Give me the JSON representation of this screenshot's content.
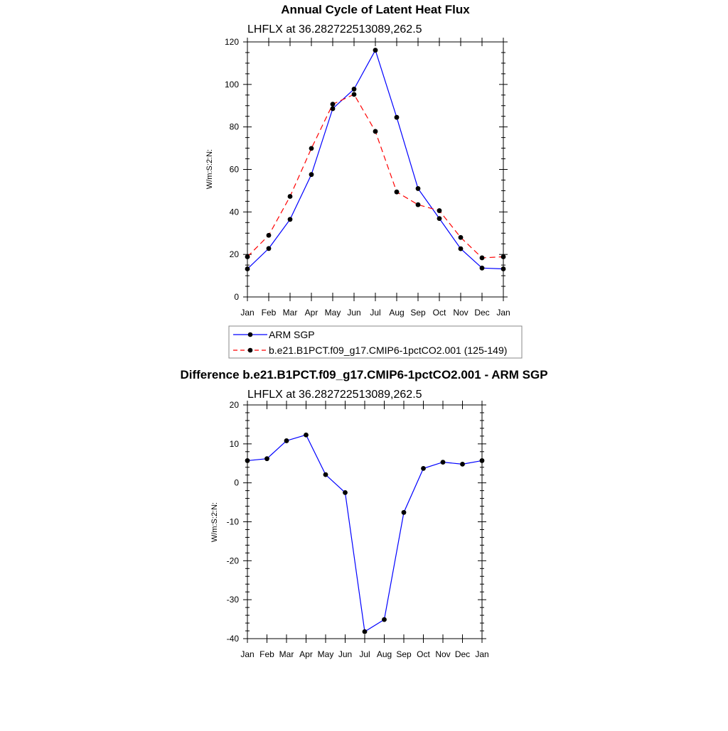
{
  "chart_data": [
    {
      "type": "line",
      "title": "Annual Cycle of Latent Heat Flux",
      "subtitle": "LHFLX at 36.282722513089,262.5",
      "ylabel": "W/m:S:2:N:",
      "xlabel": "",
      "ylim": [
        0,
        120
      ],
      "yticks": [
        "0",
        "20",
        "40",
        "60",
        "80",
        "100",
        "120"
      ],
      "categories": [
        "Jan",
        "Feb",
        "Mar",
        "Apr",
        "May",
        "Jun",
        "Jul",
        "Aug",
        "Sep",
        "Oct",
        "Nov",
        "Dec",
        "Jan"
      ],
      "series": [
        {
          "name": "ARM SGP",
          "color": "#0000ff",
          "dash": "solid",
          "values": [
            13.2,
            22.8,
            36.5,
            57.6,
            88.6,
            97.8,
            116.1,
            84.5,
            51.0,
            36.9,
            22.7,
            13.6,
            13.2
          ]
        },
        {
          "name": "b.e21.B1PCT.f09_g17.CMIP6-1pctCO2.001 (125-149)",
          "color": "#ff0000",
          "dash": "dashed",
          "values": [
            18.9,
            29.0,
            47.3,
            69.9,
            90.7,
            95.3,
            77.9,
            49.4,
            43.4,
            40.6,
            28.0,
            18.4,
            18.9
          ]
        }
      ]
    },
    {
      "type": "line",
      "title": "Difference b.e21.B1PCT.f09_g17.CMIP6-1pctCO2.001 - ARM SGP",
      "subtitle": "LHFLX at 36.282722513089,262.5",
      "ylabel": "W/m:S:2:N:",
      "xlabel": "",
      "ylim": [
        -40,
        20
      ],
      "yticks": [
        "-40",
        "-30",
        "-20",
        "-10",
        "0",
        "10",
        "20"
      ],
      "categories": [
        "Jan",
        "Feb",
        "Mar",
        "Apr",
        "May",
        "Jun",
        "Jul",
        "Aug",
        "Sep",
        "Oct",
        "Nov",
        "Dec",
        "Jan"
      ],
      "series": [
        {
          "name": "Difference",
          "color": "#0000ff",
          "dash": "solid",
          "values": [
            5.7,
            6.2,
            10.8,
            12.3,
            2.1,
            -2.5,
            -38.2,
            -35.1,
            -7.6,
            3.7,
            5.3,
            4.8,
            5.7
          ]
        }
      ]
    }
  ]
}
